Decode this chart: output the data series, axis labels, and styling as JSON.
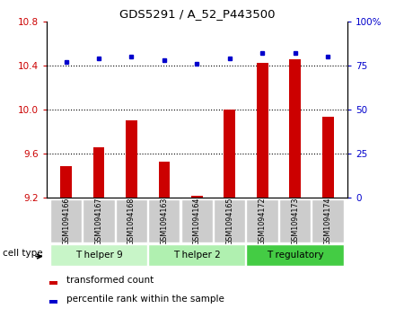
{
  "title": "GDS5291 / A_52_P443500",
  "samples": [
    "GSM1094166",
    "GSM1094167",
    "GSM1094168",
    "GSM1094163",
    "GSM1094164",
    "GSM1094165",
    "GSM1094172",
    "GSM1094173",
    "GSM1094174"
  ],
  "bar_values": [
    9.48,
    9.65,
    9.9,
    9.52,
    9.21,
    10.0,
    10.42,
    10.45,
    9.93
  ],
  "percentile_values": [
    77,
    79,
    80,
    78,
    76,
    79,
    82,
    82,
    80
  ],
  "bar_color": "#cc0000",
  "percentile_color": "#0000cc",
  "ylim_left": [
    9.2,
    10.8
  ],
  "ylim_right": [
    0,
    100
  ],
  "yticks_left": [
    9.2,
    9.6,
    10.0,
    10.4,
    10.8
  ],
  "yticks_right": [
    0,
    25,
    50,
    75,
    100
  ],
  "groups": [
    {
      "label": "T helper 9",
      "start": 0,
      "end": 3,
      "color": "#c8f5c8"
    },
    {
      "label": "T helper 2",
      "start": 3,
      "end": 6,
      "color": "#b0f0b0"
    },
    {
      "label": "T regulatory",
      "start": 6,
      "end": 9,
      "color": "#44cc44"
    }
  ],
  "cell_type_label": "cell type",
  "legend_bar_label": "transformed count",
  "legend_dot_label": "percentile rank within the sample",
  "background_color": "#ffffff",
  "plot_bg_color": "#ffffff",
  "tick_label_color_left": "#cc0000",
  "tick_label_color_right": "#0000cc",
  "bar_bottom": 9.2,
  "sample_box_color": "#cccccc"
}
